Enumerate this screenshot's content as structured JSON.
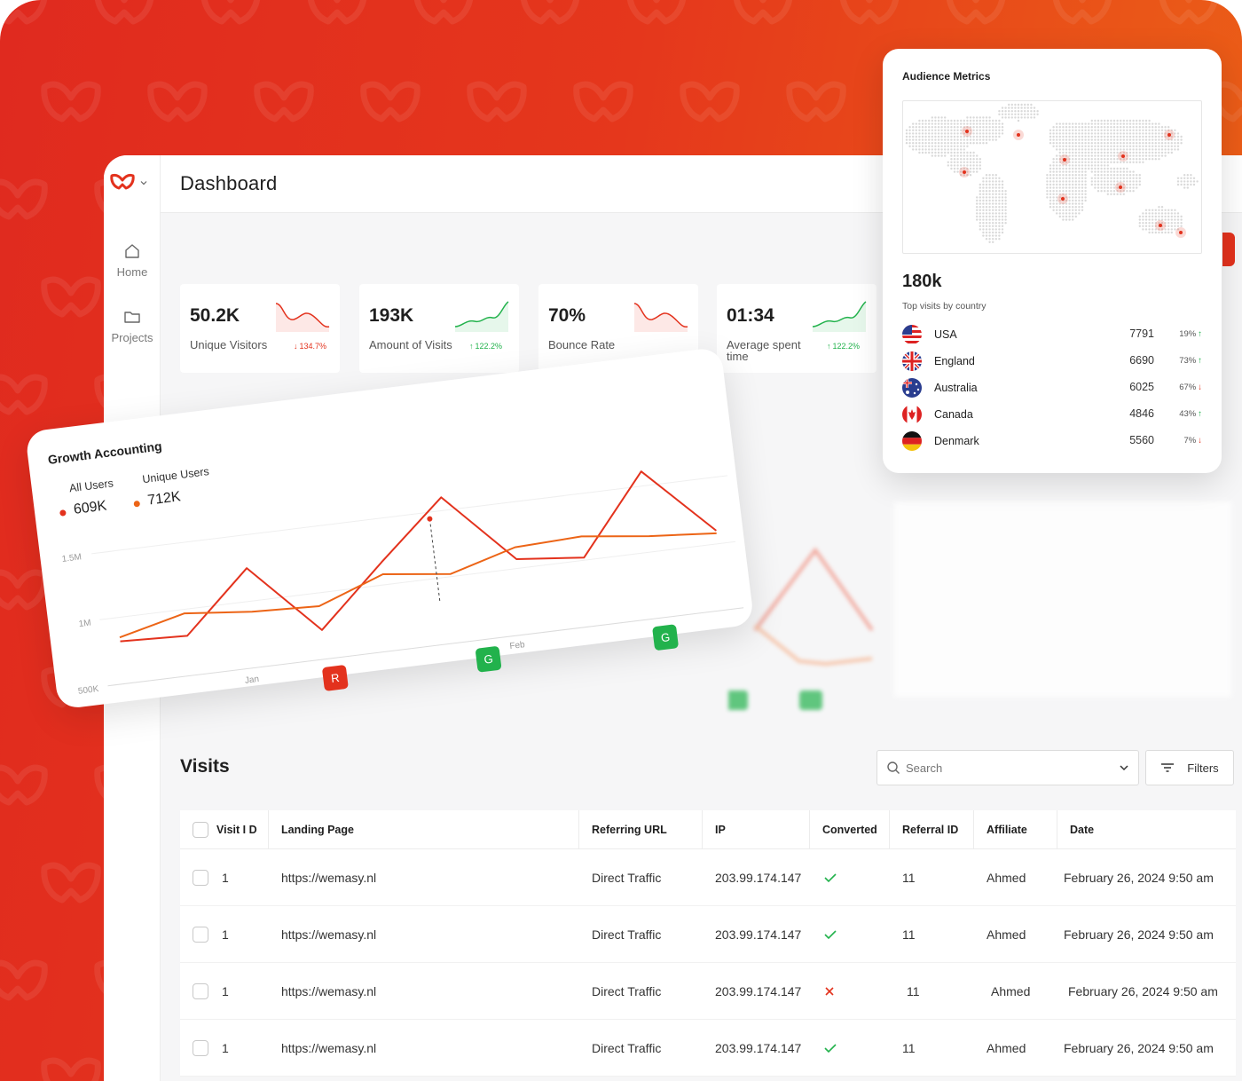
{
  "app": {
    "page_title": "Dashboard",
    "brand_color": "#e3321d",
    "nav": [
      {
        "label": "Home",
        "icon": "home-icon"
      },
      {
        "label": "Projects",
        "icon": "folder-icon"
      }
    ]
  },
  "stats": [
    {
      "value": "50.2K",
      "label": "Unique Visitors",
      "change": "134.7%",
      "direction": "down",
      "color": "#e3321d"
    },
    {
      "value": "193K",
      "label": "Amount of Visits",
      "change": "122.2%",
      "direction": "up",
      "color": "#22b24c"
    },
    {
      "value": "70%",
      "label": "Bounce Rate",
      "change": "",
      "direction": "down",
      "color": "#e3321d"
    },
    {
      "value": "01:34",
      "label": "Average spent time",
      "change": "122.2%",
      "direction": "up",
      "color": "#22b24c"
    }
  ],
  "growth": {
    "title": "Growth Accounting",
    "legend": [
      {
        "label": "All Users",
        "value": "609K",
        "color": "#e3321d"
      },
      {
        "label": "Unique Users",
        "value": "712K",
        "color": "#ec6416"
      }
    ],
    "badges": [
      {
        "text": "R",
        "color": "#e3321d"
      },
      {
        "text": "G",
        "color": "#22b24c"
      },
      {
        "text": "G",
        "color": "#22b24c"
      }
    ]
  },
  "chart_data": {
    "type": "line",
    "title": "Growth Accounting",
    "y_ticks": [
      "1.5M",
      "1M",
      "500K"
    ],
    "x_ticks": [
      "Jan",
      "Feb"
    ],
    "ylim": [
      500000,
      1500000
    ],
    "x": [
      0,
      1,
      2,
      3,
      4,
      5,
      6,
      7,
      8,
      9
    ],
    "series": [
      {
        "name": "All Users",
        "color": "#e3321d",
        "values": [
          820000,
          800000,
          1250000,
          720000,
          1170000,
          1600000,
          1070000,
          1020000,
          1610000,
          1100000
        ]
      },
      {
        "name": "Unique Users",
        "color": "#ec6416",
        "values": [
          850000,
          970000,
          920000,
          900000,
          1080000,
          1020000,
          1160000,
          1180000,
          1120000,
          1080000
        ]
      }
    ]
  },
  "audience": {
    "title": "Audience Metrics",
    "total": "180k",
    "subtitle": "Top visits by country",
    "countries": [
      {
        "name": "USA",
        "value": "7791",
        "pct": "19%",
        "direction": "up"
      },
      {
        "name": "England",
        "value": "6690",
        "pct": "73%",
        "direction": "up"
      },
      {
        "name": "Australia",
        "value": "6025",
        "pct": "67%",
        "direction": "down"
      },
      {
        "name": "Canada",
        "value": "4846",
        "pct": "43%",
        "direction": "up"
      },
      {
        "name": "Denmark",
        "value": "5560",
        "pct": "7%",
        "direction": "down"
      }
    ]
  },
  "visits": {
    "title": "Visits",
    "search_placeholder": "Search",
    "filters_label": "Filters",
    "columns": [
      "Visit I D",
      "Landing Page",
      "Referring URL",
      "IP",
      "Converted",
      "Referral ID",
      "Affiliate",
      "Date"
    ],
    "rows": [
      {
        "id": "1",
        "landing": "https://wemasy.nl",
        "referrer": "Direct Traffic",
        "ip": "203.99.174.147",
        "converted": true,
        "referral_id": "11",
        "affiliate": "Ahmed",
        "date": "February 26, 2024 9:50 am"
      },
      {
        "id": "1",
        "landing": "https://wemasy.nl",
        "referrer": "Direct Traffic",
        "ip": "203.99.174.147",
        "converted": true,
        "referral_id": "11",
        "affiliate": "Ahmed",
        "date": "February 26, 2024 9:50 am"
      },
      {
        "id": "1",
        "landing": "https://wemasy.nl",
        "referrer": "Direct Traffic",
        "ip": "203.99.174.147",
        "converted": false,
        "referral_id": "11",
        "affiliate": "Ahmed",
        "date": "February 26, 2024 9:50 am"
      },
      {
        "id": "1",
        "landing": "https://wemasy.nl",
        "referrer": "Direct Traffic",
        "ip": "203.99.174.147",
        "converted": true,
        "referral_id": "11",
        "affiliate": "Ahmed",
        "date": "February 26, 2024 9:50 am"
      }
    ]
  }
}
